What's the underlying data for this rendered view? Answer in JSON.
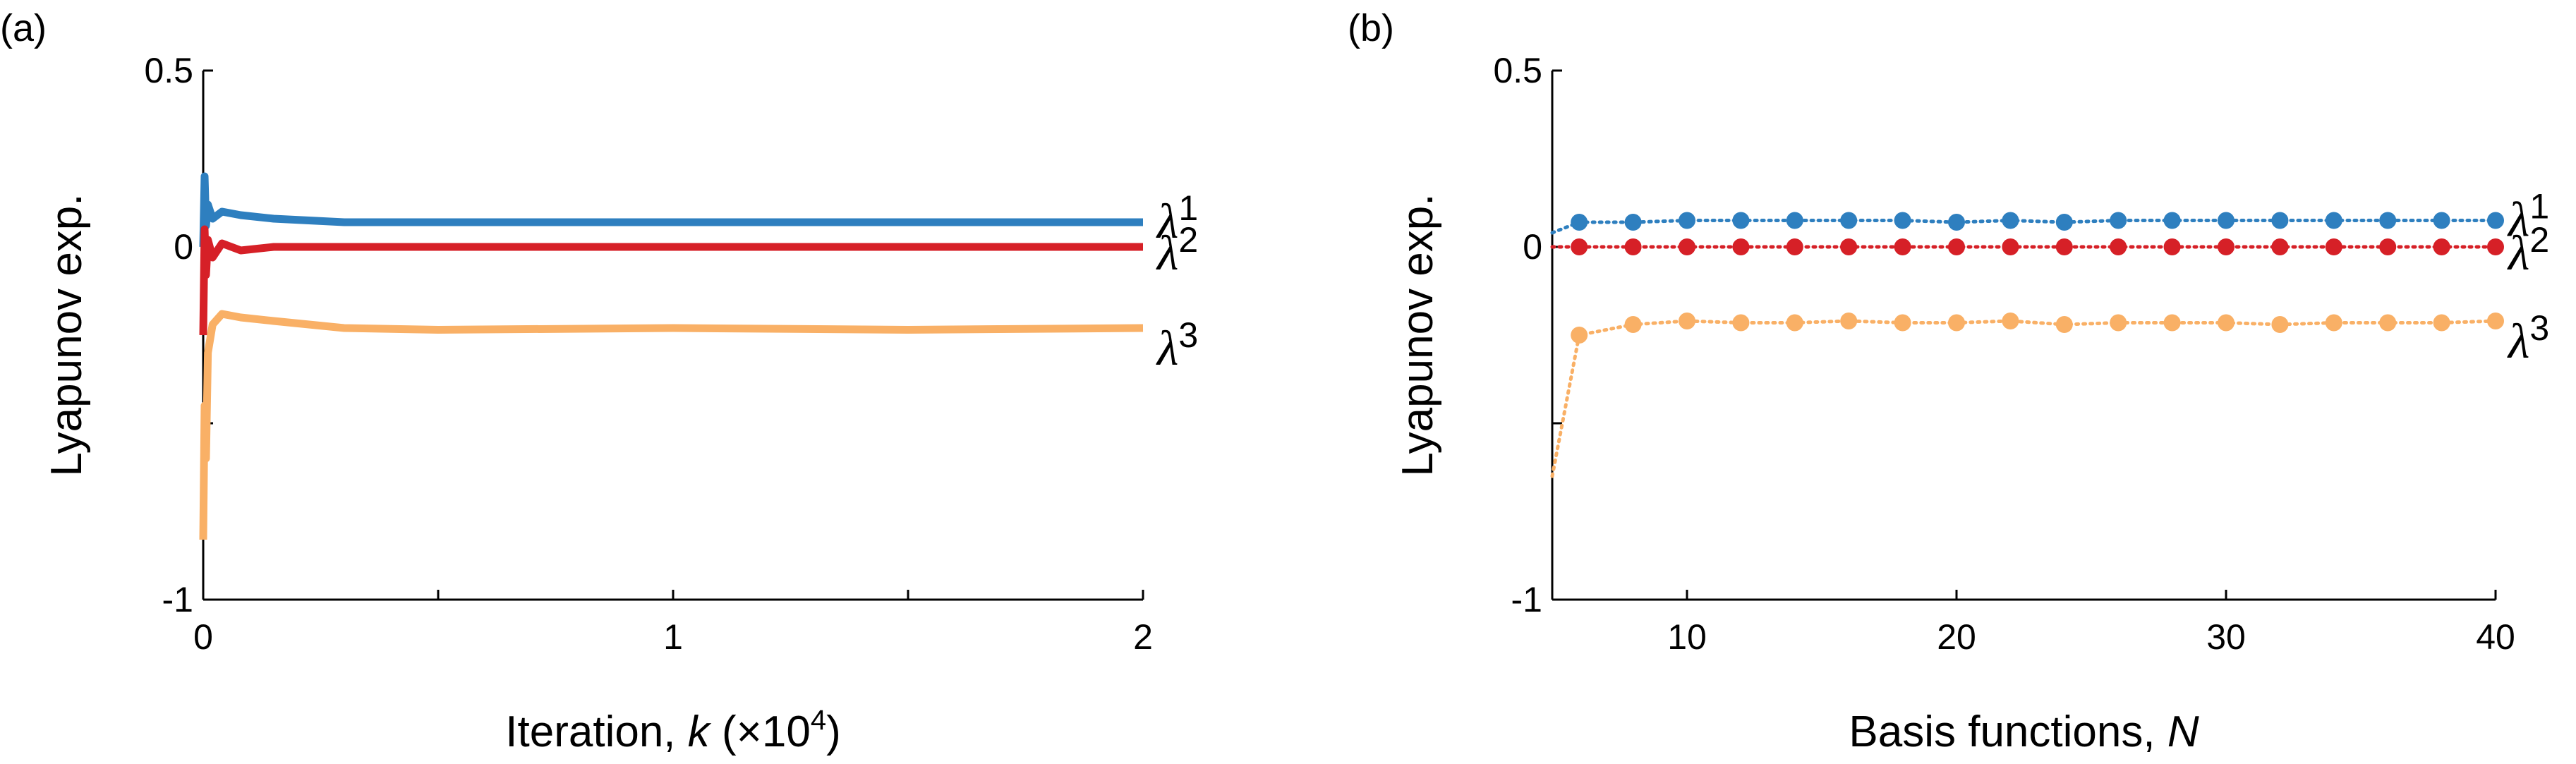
{
  "chart_data": [
    {
      "type": "line",
      "panel_label": "(a)",
      "ylabel": "Lyapunov exp.",
      "xlabel_prefix": "Iteration, ",
      "xlabel_var": "k",
      "xlabel_suffix": " (×10",
      "xlabel_exp": "4",
      "xlabel_close": ")",
      "xlim": [
        0,
        2
      ],
      "ylim": [
        -1,
        0.5
      ],
      "xticks": [
        {
          "value": 0,
          "label": "0"
        },
        {
          "value": 1,
          "label": "1"
        },
        {
          "value": 2,
          "label": "2"
        }
      ],
      "xminor": [
        0.5,
        1.5
      ],
      "yticks": [
        {
          "value": 0.5,
          "label": "0.5"
        },
        {
          "value": 0,
          "label": "0"
        },
        {
          "value": -1,
          "label": "-1"
        }
      ],
      "yminor": [
        -0.5
      ],
      "series": [
        {
          "name": "λ1",
          "symbol": "λ",
          "sub": "1",
          "color": "#2e7fbf",
          "x": [
            0,
            0.003,
            0.006,
            0.01,
            0.02,
            0.04,
            0.08,
            0.15,
            0.3,
            0.5,
            1.0,
            1.5,
            2.0
          ],
          "y": [
            0.0,
            0.2,
            0.06,
            0.12,
            0.08,
            0.1,
            0.09,
            0.08,
            0.07,
            0.07,
            0.07,
            0.07,
            0.07
          ]
        },
        {
          "name": "λ2",
          "symbol": "λ",
          "sub": "2",
          "color": "#d62027",
          "x": [
            0,
            0.003,
            0.006,
            0.01,
            0.02,
            0.04,
            0.08,
            0.15,
            0.3,
            0.5,
            1.0,
            1.5,
            2.0
          ],
          "y": [
            -0.25,
            0.05,
            -0.08,
            0.02,
            -0.03,
            0.01,
            -0.01,
            0.0,
            0.0,
            0.0,
            0.0,
            0.0,
            0.0
          ]
        },
        {
          "name": "λ3",
          "symbol": "λ",
          "sub": "3",
          "color": "#f9b066",
          "x": [
            0,
            0.003,
            0.006,
            0.01,
            0.02,
            0.04,
            0.08,
            0.15,
            0.3,
            0.5,
            1.0,
            1.5,
            2.0
          ],
          "y": [
            -0.83,
            -0.45,
            -0.6,
            -0.3,
            -0.22,
            -0.19,
            -0.2,
            -0.21,
            -0.23,
            -0.235,
            -0.23,
            -0.235,
            -0.23
          ]
        }
      ]
    },
    {
      "type": "line",
      "panel_label": "(b)",
      "ylabel": "Lyapunov exp.",
      "xlabel_prefix": "Basis functions, ",
      "xlabel_var": "N",
      "xlim": [
        5,
        40
      ],
      "ylim": [
        -1,
        0.5
      ],
      "xticks": [
        {
          "value": 10,
          "label": "10"
        },
        {
          "value": 20,
          "label": "20"
        },
        {
          "value": 30,
          "label": "30"
        },
        {
          "value": 40,
          "label": "40"
        }
      ],
      "yticks": [
        {
          "value": 0.5,
          "label": "0.5"
        },
        {
          "value": 0,
          "label": "0"
        },
        {
          "value": -1,
          "label": "-1"
        }
      ],
      "yminor": [
        -0.5
      ],
      "x": [
        6,
        8,
        10,
        12,
        14,
        16,
        18,
        20,
        22,
        24,
        26,
        28,
        30,
        32,
        34,
        36,
        38,
        40
      ],
      "series": [
        {
          "name": "λ1",
          "symbol": "λ",
          "sub": "1",
          "color": "#2e7fbf",
          "start": [
            5,
            0.04
          ],
          "values": [
            0.07,
            0.07,
            0.075,
            0.075,
            0.075,
            0.075,
            0.075,
            0.07,
            0.075,
            0.07,
            0.075,
            0.075,
            0.075,
            0.075,
            0.075,
            0.075,
            0.075,
            0.075
          ]
        },
        {
          "name": "λ2",
          "symbol": "λ",
          "sub": "2",
          "color": "#d62027",
          "start": [
            5,
            0.0
          ],
          "values": [
            0.0,
            0.0,
            0.0,
            0.0,
            0.0,
            0.0,
            0.0,
            0.0,
            0.0,
            0.0,
            0.0,
            0.0,
            0.0,
            0.0,
            0.0,
            0.0,
            0.0,
            0.0
          ]
        },
        {
          "name": "λ3",
          "symbol": "λ",
          "sub": "3",
          "color": "#f9b066",
          "start": [
            5,
            -0.65
          ],
          "values": [
            -0.25,
            -0.22,
            -0.21,
            -0.215,
            -0.215,
            -0.21,
            -0.215,
            -0.215,
            -0.21,
            -0.22,
            -0.215,
            -0.215,
            -0.215,
            -0.22,
            -0.215,
            -0.215,
            -0.215,
            -0.21
          ]
        }
      ]
    }
  ]
}
